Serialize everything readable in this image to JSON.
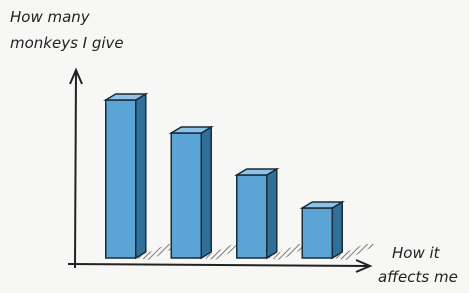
{
  "chart_data": {
    "type": "bar",
    "ylabel": [
      "How many",
      "monkeys I give"
    ],
    "xlabel": [
      "How it",
      "affects me"
    ],
    "categories": [
      null,
      null,
      null,
      null
    ],
    "values": [
      158,
      125,
      83,
      50
    ],
    "color": "#5aa5d6",
    "ylim": [
      0,
      180
    ]
  }
}
